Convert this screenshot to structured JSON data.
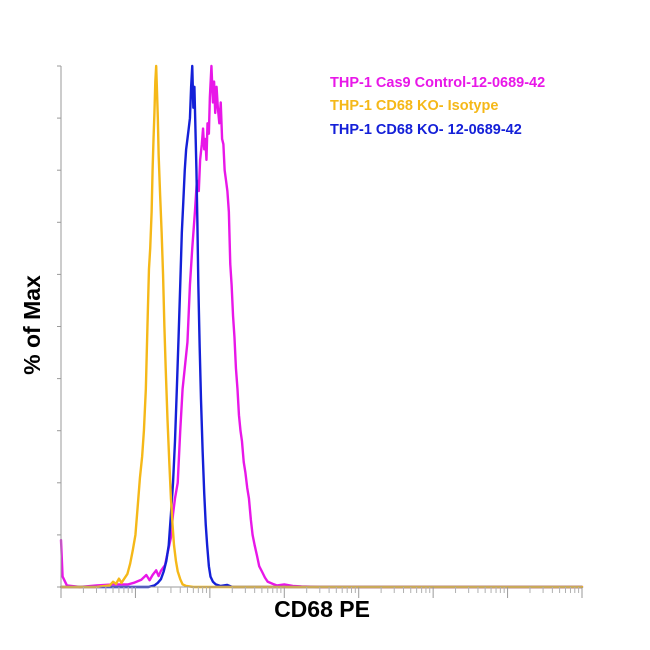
{
  "chart_data": {
    "type": "line",
    "title": "",
    "xlabel": "CD68 PE",
    "ylabel": "% of Max",
    "xscale": "log",
    "xlim": [
      1,
      10000000
    ],
    "ylim": [
      0,
      100
    ],
    "grid": false,
    "legend_position": "top-right",
    "series": [
      {
        "name": "THP-1 Cas9 Control-12-0689-42",
        "color": "#e817e8",
        "points": [
          [
            1.0,
            9
          ],
          [
            1.05,
            2
          ],
          [
            1.2,
            0.3
          ],
          [
            1.8,
            0
          ],
          [
            3,
            0.3
          ],
          [
            5,
            0.5
          ],
          [
            8,
            0.5
          ],
          [
            9.5,
            0.8
          ],
          [
            12,
            1.4
          ],
          [
            14,
            2.3
          ],
          [
            15.5,
            1.3
          ],
          [
            17,
            2.3
          ],
          [
            19,
            3.2
          ],
          [
            20.5,
            2.1
          ],
          [
            22,
            3.1
          ],
          [
            25,
            4.2
          ],
          [
            27,
            6.5
          ],
          [
            30,
            9.5
          ],
          [
            32,
            14
          ],
          [
            34,
            17
          ],
          [
            37,
            20
          ],
          [
            40,
            30
          ],
          [
            43,
            38
          ],
          [
            46,
            42
          ],
          [
            50,
            47
          ],
          [
            54,
            58
          ],
          [
            58,
            65
          ],
          [
            63,
            72
          ],
          [
            67,
            78
          ],
          [
            71,
            76
          ],
          [
            74,
            82
          ],
          [
            78,
            85
          ],
          [
            81,
            88
          ],
          [
            84,
            84
          ],
          [
            87,
            86
          ],
          [
            90,
            82
          ],
          [
            93,
            89
          ],
          [
            97,
            87
          ],
          [
            100,
            94
          ],
          [
            105,
            100
          ],
          [
            110,
            93
          ],
          [
            114,
            97
          ],
          [
            118,
            91
          ],
          [
            123,
            96
          ],
          [
            128,
            92
          ],
          [
            134,
            89
          ],
          [
            140,
            93
          ],
          [
            146,
            86
          ],
          [
            152,
            85
          ],
          [
            158,
            80
          ],
          [
            165,
            78
          ],
          [
            172,
            76
          ],
          [
            180,
            72
          ],
          [
            188,
            62
          ],
          [
            196,
            58
          ],
          [
            205,
            52
          ],
          [
            214,
            48
          ],
          [
            224,
            42
          ],
          [
            235,
            38
          ],
          [
            246,
            33
          ],
          [
            258,
            30
          ],
          [
            270,
            28
          ],
          [
            285,
            24
          ],
          [
            300,
            22
          ],
          [
            318,
            19
          ],
          [
            335,
            17
          ],
          [
            355,
            13
          ],
          [
            375,
            10
          ],
          [
            400,
            8
          ],
          [
            430,
            6
          ],
          [
            460,
            4
          ],
          [
            500,
            3
          ],
          [
            550,
            1.8
          ],
          [
            600,
            1
          ],
          [
            700,
            0.6
          ],
          [
            800,
            0.3
          ],
          [
            1000,
            0.5
          ],
          [
            1300,
            0.2
          ],
          [
            1700,
            0.1
          ],
          [
            3000,
            0
          ],
          [
            10000,
            0
          ],
          [
            10000000,
            0
          ]
        ]
      },
      {
        "name": "THP-1 CD68 KO- Isotype",
        "color": "#f5b818",
        "points": [
          [
            1,
            0
          ],
          [
            3,
            0
          ],
          [
            4.5,
            0.3
          ],
          [
            5,
            1
          ],
          [
            5.5,
            0.6
          ],
          [
            6,
            1.6
          ],
          [
            6.5,
            0.8
          ],
          [
            7,
            1.5
          ],
          [
            7.8,
            2.5
          ],
          [
            8.5,
            4.5
          ],
          [
            9.2,
            7
          ],
          [
            10,
            10
          ],
          [
            10.8,
            16
          ],
          [
            11.5,
            21
          ],
          [
            12.3,
            25
          ],
          [
            13,
            30
          ],
          [
            13.8,
            38
          ],
          [
            14.5,
            50
          ],
          [
            15.2,
            61
          ],
          [
            15.8,
            65
          ],
          [
            16.5,
            72
          ],
          [
            17,
            80
          ],
          [
            17.5,
            86
          ],
          [
            18,
            91
          ],
          [
            18.5,
            97
          ],
          [
            19,
            100
          ],
          [
            19.5,
            95
          ],
          [
            20,
            90
          ],
          [
            20.5,
            83
          ],
          [
            21.5,
            75
          ],
          [
            22.5,
            68
          ],
          [
            23.5,
            60
          ],
          [
            24.5,
            50
          ],
          [
            25.5,
            42
          ],
          [
            27,
            32
          ],
          [
            28.5,
            24
          ],
          [
            30,
            17
          ],
          [
            31.5,
            12
          ],
          [
            33,
            8
          ],
          [
            35,
            5
          ],
          [
            37,
            3
          ],
          [
            40,
            1.5
          ],
          [
            43,
            0.5
          ],
          [
            48,
            0.2
          ],
          [
            60,
            0
          ],
          [
            10000000,
            0
          ]
        ]
      },
      {
        "name": "THP-1 CD68 KO- 12-0689-42",
        "color": "#1420d8",
        "points": [
          [
            1,
            0
          ],
          [
            15,
            0
          ],
          [
            18,
            0.3
          ],
          [
            20,
            0.8
          ],
          [
            22,
            1.5
          ],
          [
            24,
            3
          ],
          [
            26,
            5
          ],
          [
            28,
            8
          ],
          [
            30,
            14
          ],
          [
            32,
            20
          ],
          [
            34,
            28
          ],
          [
            36,
            38
          ],
          [
            38,
            48
          ],
          [
            40,
            58
          ],
          [
            42,
            68
          ],
          [
            44,
            74
          ],
          [
            46,
            80
          ],
          [
            48,
            84
          ],
          [
            50,
            86
          ],
          [
            52,
            88
          ],
          [
            54,
            90
          ],
          [
            56,
            96
          ],
          [
            58,
            100
          ],
          [
            60,
            92
          ],
          [
            62,
            96
          ],
          [
            64,
            88
          ],
          [
            66,
            80
          ],
          [
            68,
            70
          ],
          [
            70,
            58
          ],
          [
            73,
            46
          ],
          [
            76,
            36
          ],
          [
            80,
            26
          ],
          [
            84,
            18
          ],
          [
            88,
            12
          ],
          [
            92,
            8
          ],
          [
            97,
            4
          ],
          [
            102,
            2
          ],
          [
            110,
            1
          ],
          [
            120,
            0.5
          ],
          [
            140,
            0.2
          ],
          [
            170,
            0.4
          ],
          [
            200,
            0
          ],
          [
            10000000,
            0
          ]
        ]
      }
    ]
  }
}
